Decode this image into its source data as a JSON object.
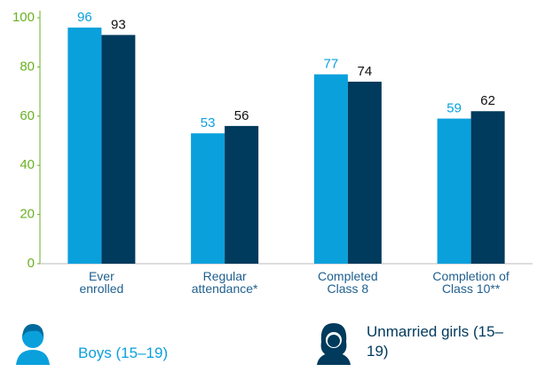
{
  "chart_data": {
    "type": "bar",
    "categories": [
      "Ever\nenrolled",
      "Regular\nattendance*",
      "Completed\nClass 8",
      "Completion of\nClass 10**"
    ],
    "series": [
      {
        "name": "Boys (15–19)",
        "color": "#0aa0dc",
        "values": [
          96,
          53,
          77,
          59
        ]
      },
      {
        "name": "Unmarried girls (15–19)",
        "color": "#003a5c",
        "values": [
          93,
          56,
          74,
          62
        ]
      }
    ],
    "ylim": [
      0,
      100
    ],
    "yticks": [
      0,
      20,
      40,
      60,
      80,
      100
    ],
    "grid": false
  }
}
